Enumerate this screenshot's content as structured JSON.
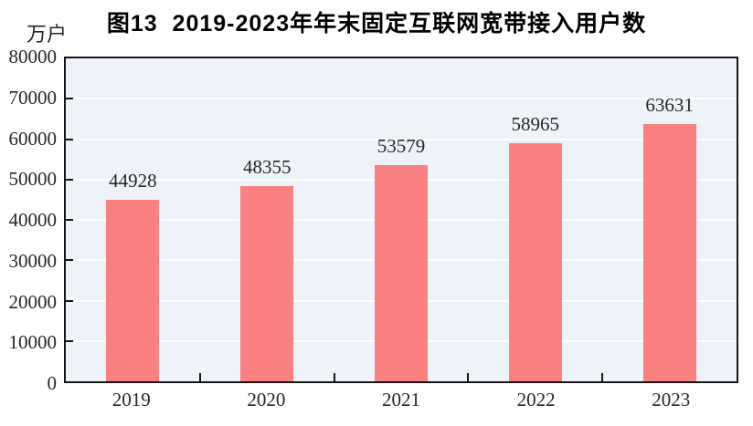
{
  "figure": {
    "title": "图13  2019-2023年年末固定互联网宽带接入用户数",
    "unit_label": "万户"
  },
  "chart_data": {
    "type": "bar",
    "title": "图13  2019-2023年年末固定互联网宽带接入用户数",
    "ylabel_unit": "万户",
    "categories": [
      "2019",
      "2020",
      "2021",
      "2022",
      "2023"
    ],
    "values": [
      44928,
      48355,
      53579,
      58965,
      63631
    ],
    "data_labels": [
      "44928",
      "48355",
      "53579",
      "58965",
      "63631"
    ],
    "ylim": [
      0,
      80000
    ],
    "yticks": [
      0,
      10000,
      20000,
      30000,
      40000,
      50000,
      60000,
      70000,
      80000
    ],
    "grid": "horizontal",
    "legend": "none",
    "colors": {
      "bar_fill": "#fa8180",
      "plot_background": "#edf3f8",
      "gridline": "#ffffff",
      "axis_frame": "#161616",
      "text": "#262626",
      "page_background": "#ffffff"
    }
  }
}
